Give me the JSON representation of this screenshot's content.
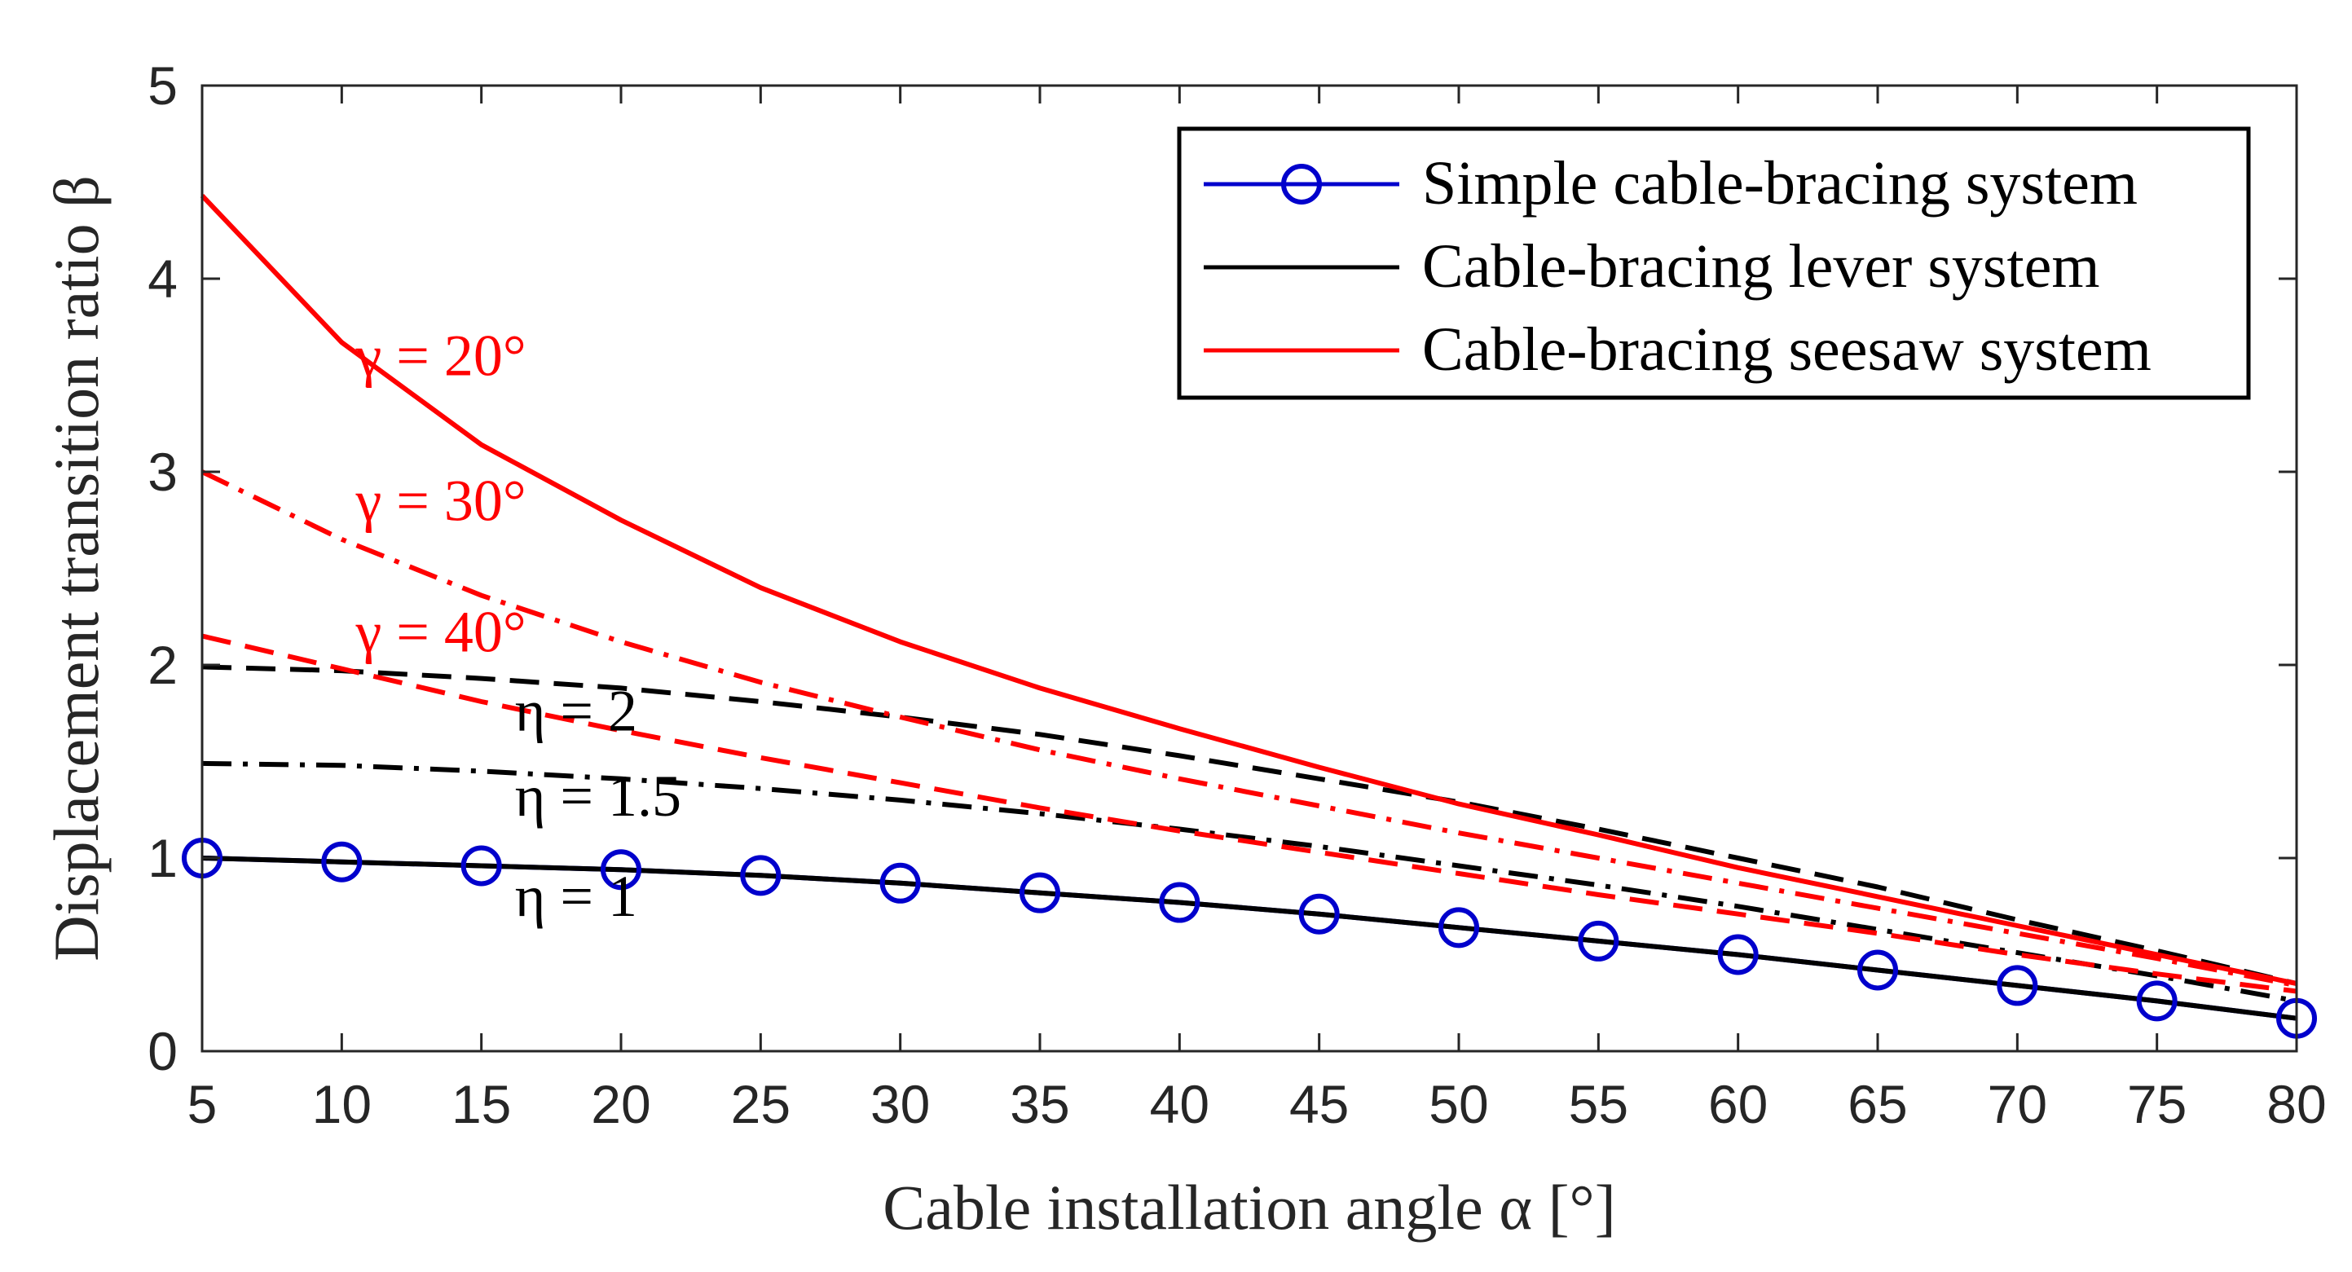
{
  "chart_data": {
    "type": "line",
    "title": "",
    "xlabel": "Cable installation angle α [°]",
    "ylabel": "Displacement transition ratio β",
    "xlim": [
      5,
      80
    ],
    "ylim": [
      0,
      5
    ],
    "x_ticks": [
      "5",
      "10",
      "15",
      "20",
      "25",
      "30",
      "35",
      "40",
      "45",
      "50",
      "55",
      "60",
      "65",
      "70",
      "75",
      "80"
    ],
    "y_ticks": [
      "0",
      "1",
      "2",
      "3",
      "4",
      "5"
    ],
    "grid": false,
    "legend_position": "top-right",
    "legend": [
      {
        "label": "Simple cable-bracing system",
        "color": "#0000cc",
        "marker": "circle"
      },
      {
        "label": "Cable-bracing lever system",
        "color": "#000000",
        "marker": "none"
      },
      {
        "label": "Cable-bracing seesaw system",
        "color": "#ff0000",
        "marker": "none"
      }
    ],
    "annotations": [
      {
        "text": "γ = 20°",
        "color": "#ff0000"
      },
      {
        "text": "γ = 30°",
        "color": "#ff0000"
      },
      {
        "text": "γ = 40°",
        "color": "#ff0000"
      },
      {
        "text": "η = 2",
        "color": "#000000"
      },
      {
        "text": "η = 1.5",
        "color": "#000000"
      },
      {
        "text": "η = 1",
        "color": "#000000"
      }
    ],
    "series": [
      {
        "name": "Simple cable-bracing system",
        "color": "#0000cc",
        "dash": "solid",
        "marker": "circle",
        "x": [
          5,
          10,
          15,
          20,
          25,
          30,
          35,
          40,
          45,
          50,
          55,
          60,
          65,
          70,
          75,
          80
        ],
        "y": [
          1.0,
          0.98,
          0.96,
          0.94,
          0.91,
          0.87,
          0.82,
          0.77,
          0.71,
          0.64,
          0.57,
          0.5,
          0.42,
          0.34,
          0.26,
          0.17
        ]
      },
      {
        "name": "Lever η = 1",
        "color": "#000000",
        "dash": "solid",
        "x": [
          5,
          10,
          15,
          20,
          25,
          30,
          35,
          40,
          45,
          50,
          55,
          60,
          65,
          70,
          75,
          80
        ],
        "y": [
          1.0,
          0.98,
          0.96,
          0.94,
          0.91,
          0.87,
          0.82,
          0.77,
          0.71,
          0.64,
          0.57,
          0.5,
          0.42,
          0.34,
          0.26,
          0.17
        ]
      },
      {
        "name": "Lever η = 1.5",
        "color": "#000000",
        "dash": "dashdot",
        "x": [
          5,
          10,
          15,
          20,
          25,
          30,
          35,
          40,
          45,
          50,
          55,
          60,
          65,
          70,
          75,
          80
        ],
        "y": [
          1.49,
          1.48,
          1.45,
          1.41,
          1.36,
          1.3,
          1.23,
          1.15,
          1.06,
          0.96,
          0.86,
          0.75,
          0.63,
          0.51,
          0.39,
          0.26
        ]
      },
      {
        "name": "Lever η = 2",
        "color": "#000000",
        "dash": "dashed",
        "x": [
          5,
          10,
          15,
          20,
          25,
          30,
          35,
          40,
          45,
          50,
          55,
          60,
          65,
          70,
          75,
          80
        ],
        "y": [
          1.99,
          1.97,
          1.93,
          1.88,
          1.81,
          1.73,
          1.64,
          1.53,
          1.41,
          1.29,
          1.15,
          1.0,
          0.85,
          0.68,
          0.52,
          0.35
        ]
      },
      {
        "name": "Seesaw γ = 20°",
        "color": "#ff0000",
        "dash": "solid",
        "x": [
          5,
          10,
          15,
          20,
          25,
          30,
          35,
          40,
          45,
          50,
          55,
          60,
          65,
          70,
          75,
          80
        ],
        "y": [
          4.43,
          3.67,
          3.14,
          2.75,
          2.4,
          2.12,
          1.88,
          1.67,
          1.47,
          1.28,
          1.12,
          0.95,
          0.8,
          0.65,
          0.5,
          0.35
        ]
      },
      {
        "name": "Seesaw γ = 30°",
        "color": "#ff0000",
        "dash": "dashdot",
        "x": [
          5,
          10,
          15,
          20,
          25,
          30,
          35,
          40,
          45,
          50,
          55,
          60,
          65,
          70,
          75,
          80
        ],
        "y": [
          3.0,
          2.65,
          2.36,
          2.12,
          1.91,
          1.73,
          1.56,
          1.41,
          1.27,
          1.13,
          1.0,
          0.87,
          0.74,
          0.61,
          0.48,
          0.34
        ]
      },
      {
        "name": "Seesaw γ = 40°",
        "color": "#ff0000",
        "dash": "dashed",
        "x": [
          5,
          10,
          15,
          20,
          25,
          30,
          35,
          40,
          45,
          50,
          55,
          60,
          65,
          70,
          75,
          80
        ],
        "y": [
          2.15,
          1.98,
          1.81,
          1.66,
          1.52,
          1.39,
          1.26,
          1.14,
          1.03,
          0.92,
          0.81,
          0.71,
          0.61,
          0.5,
          0.4,
          0.31
        ]
      }
    ]
  }
}
